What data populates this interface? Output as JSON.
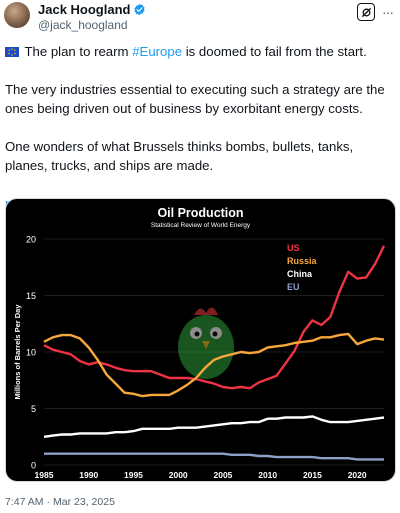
{
  "author": {
    "display_name": "Jack Hoogland",
    "handle": "@jack_hoogland"
  },
  "tweet": {
    "para1_pre": "The plan to rearm ",
    "hashtag": "#Europe",
    "para1_post": " is doomed to fail from the start.",
    "para2": "The very industries essential to executing such a strategy are the ones being driven out of business by exorbitant energy costs.",
    "para3": "One wonders of what Brussels thinks bombs, bullets, tanks, planes, trucks, and ships are made.",
    "link": "newsletter.doomberg.com/p/project-porc…"
  },
  "meta": {
    "time": "7:47 AM",
    "separator": "·",
    "date": "Mar 23, 2025"
  },
  "icons": {
    "verified": "verified-badge-icon",
    "grok": "grok-icon",
    "more": "more-icon",
    "flag": "eu-flag-icon"
  },
  "colors": {
    "verified": "#1d9bf0",
    "link": "#1d9bf0",
    "us": "#ee3344",
    "russia": "#f7a83a",
    "china": "#ffffff",
    "eu": "#8ea0c8"
  },
  "chart_data": {
    "type": "line",
    "title": "Oil Production",
    "subtitle": "Statistical Review of World Energy",
    "ylabel": "Millions of Barrels Per Day",
    "xlabel": "",
    "xlim": [
      1985,
      2023
    ],
    "ylim": [
      0,
      20
    ],
    "xticks": [
      1985,
      1990,
      1995,
      2000,
      2005,
      2010,
      2015,
      2020
    ],
    "yticks": [
      0,
      5,
      10,
      15,
      20
    ],
    "grid": true,
    "legend": "top-right",
    "x": [
      1985,
      1986,
      1987,
      1988,
      1989,
      1990,
      1991,
      1992,
      1993,
      1994,
      1995,
      1996,
      1997,
      1998,
      1999,
      2000,
      2001,
      2002,
      2003,
      2004,
      2005,
      2006,
      2007,
      2008,
      2009,
      2010,
      2011,
      2012,
      2013,
      2014,
      2015,
      2016,
      2017,
      2018,
      2019,
      2020,
      2021,
      2022,
      2023
    ],
    "series": [
      {
        "name": "US",
        "color": "#ee3344",
        "values": [
          10.6,
          10.2,
          10.0,
          9.8,
          9.2,
          8.9,
          9.1,
          8.9,
          8.6,
          8.4,
          8.3,
          8.3,
          8.3,
          8.0,
          7.7,
          7.7,
          7.7,
          7.6,
          7.4,
          7.2,
          6.9,
          6.8,
          6.9,
          6.8,
          7.3,
          7.6,
          7.9,
          9.0,
          10.1,
          11.8,
          12.8,
          12.4,
          13.1,
          15.3,
          17.1,
          16.5,
          16.6,
          17.8,
          19.4
        ]
      },
      {
        "name": "Russia",
        "color": "#f7a83a",
        "values": [
          10.9,
          11.3,
          11.5,
          11.5,
          11.2,
          10.4,
          9.3,
          8.0,
          7.2,
          6.4,
          6.3,
          6.1,
          6.2,
          6.2,
          6.2,
          6.6,
          7.1,
          7.7,
          8.6,
          9.3,
          9.6,
          9.8,
          10.0,
          9.9,
          10.0,
          10.4,
          10.5,
          10.6,
          10.8,
          10.9,
          11.0,
          11.3,
          11.3,
          11.5,
          11.6,
          10.7,
          11.0,
          11.2,
          11.1
        ]
      },
      {
        "name": "China",
        "color": "#ffffff",
        "values": [
          2.5,
          2.6,
          2.7,
          2.7,
          2.8,
          2.8,
          2.8,
          2.8,
          2.9,
          2.9,
          3.0,
          3.2,
          3.2,
          3.2,
          3.2,
          3.3,
          3.3,
          3.3,
          3.4,
          3.5,
          3.6,
          3.7,
          3.7,
          3.8,
          3.8,
          4.1,
          4.1,
          4.2,
          4.2,
          4.2,
          4.3,
          4.0,
          3.8,
          3.8,
          3.8,
          3.9,
          4.0,
          4.1,
          4.2
        ]
      },
      {
        "name": "EU",
        "color": "#8ea0c8",
        "values": [
          1.0,
          1.0,
          1.0,
          1.0,
          1.0,
          1.0,
          1.0,
          1.0,
          1.0,
          1.0,
          1.0,
          1.0,
          1.0,
          1.0,
          1.0,
          1.0,
          1.0,
          1.0,
          1.0,
          1.0,
          1.0,
          0.9,
          0.9,
          0.9,
          0.8,
          0.8,
          0.7,
          0.7,
          0.7,
          0.7,
          0.7,
          0.6,
          0.6,
          0.6,
          0.6,
          0.5,
          0.5,
          0.5,
          0.5
        ]
      }
    ]
  }
}
